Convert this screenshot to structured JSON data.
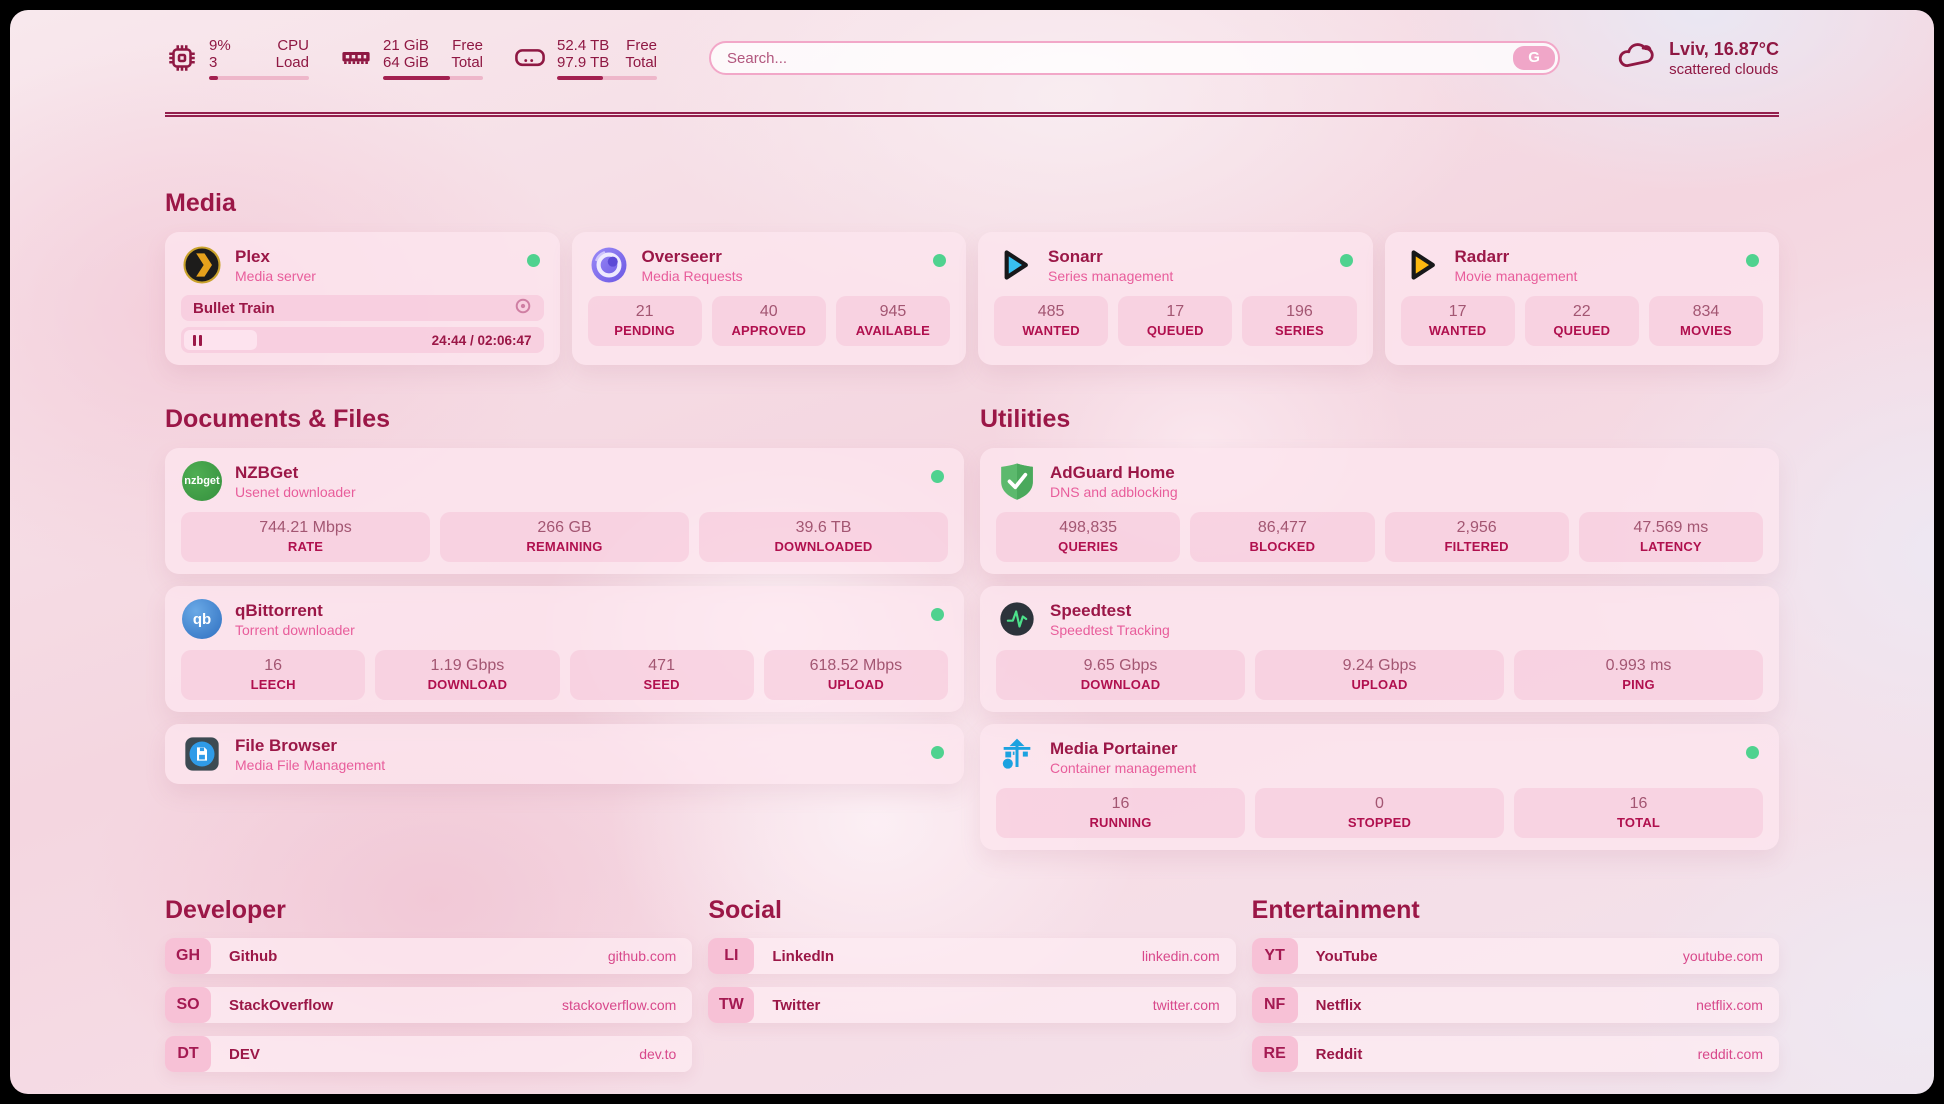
{
  "header": {
    "cpu": {
      "percent": "9%",
      "cores": "3",
      "label_top": "CPU",
      "label_bottom": "Load",
      "progress": 9
    },
    "ram": {
      "free": "21 GiB",
      "total": "64 GiB",
      "label_top": "Free",
      "label_bottom": "Total",
      "progress": 67
    },
    "disk": {
      "free": "52.4 TB",
      "total": "97.9 TB",
      "label_top": "Free",
      "label_bottom": "Total",
      "progress": 46
    },
    "search": {
      "placeholder": "Search...",
      "button_label": "G"
    },
    "weather": {
      "location": "Lviv, 16.87°C",
      "condition": "scattered clouds"
    }
  },
  "media": {
    "title": "Media",
    "plex": {
      "name": "Plex",
      "subtitle": "Media server",
      "now_playing": "Bullet Train",
      "time_display": "24:44 / 02:06:47",
      "progress": 20
    },
    "overseerr": {
      "name": "Overseerr",
      "subtitle": "Media Requests",
      "stats": [
        {
          "value": "21",
          "label": "PENDING"
        },
        {
          "value": "40",
          "label": "APPROVED"
        },
        {
          "value": "945",
          "label": "AVAILABLE"
        }
      ]
    },
    "sonarr": {
      "name": "Sonarr",
      "subtitle": "Series management",
      "stats": [
        {
          "value": "485",
          "label": "WANTED"
        },
        {
          "value": "17",
          "label": "QUEUED"
        },
        {
          "value": "196",
          "label": "SERIES"
        }
      ]
    },
    "radarr": {
      "name": "Radarr",
      "subtitle": "Movie management",
      "stats": [
        {
          "value": "17",
          "label": "WANTED"
        },
        {
          "value": "22",
          "label": "QUEUED"
        },
        {
          "value": "834",
          "label": "MOVIES"
        }
      ]
    }
  },
  "documents": {
    "title": "Documents & Files",
    "nzbget": {
      "name": "NZBGet",
      "subtitle": "Usenet downloader",
      "icon_label": "nzbget",
      "stats": [
        {
          "value": "744.21 Mbps",
          "label": "RATE"
        },
        {
          "value": "266 GB",
          "label": "REMAINING"
        },
        {
          "value": "39.6 TB",
          "label": "DOWNLOADED"
        }
      ]
    },
    "qbittorrent": {
      "name": "qBittorrent",
      "subtitle": "Torrent downloader",
      "icon_label": "qb",
      "stats": [
        {
          "value": "16",
          "label": "LEECH"
        },
        {
          "value": "1.19 Gbps",
          "label": "DOWNLOAD"
        },
        {
          "value": "471",
          "label": "SEED"
        },
        {
          "value": "618.52 Mbps",
          "label": "UPLOAD"
        }
      ]
    },
    "filebrowser": {
      "name": "File Browser",
      "subtitle": "Media File Management"
    }
  },
  "utilities": {
    "title": "Utilities",
    "adguard": {
      "name": "AdGuard Home",
      "subtitle": "DNS and adblocking",
      "stats": [
        {
          "value": "498,835",
          "label": "QUERIES"
        },
        {
          "value": "86,477",
          "label": "BLOCKED"
        },
        {
          "value": "2,956",
          "label": "FILTERED"
        },
        {
          "value": "47.569 ms",
          "label": "LATENCY"
        }
      ]
    },
    "speedtest": {
      "name": "Speedtest",
      "subtitle": "Speedtest Tracking",
      "stats": [
        {
          "value": "9.65 Gbps",
          "label": "DOWNLOAD"
        },
        {
          "value": "9.24 Gbps",
          "label": "UPLOAD"
        },
        {
          "value": "0.993 ms",
          "label": "PING"
        }
      ]
    },
    "portainer": {
      "name": "Media Portainer",
      "subtitle": "Container management",
      "stats": [
        {
          "value": "16",
          "label": "RUNNING"
        },
        {
          "value": "0",
          "label": "STOPPED"
        },
        {
          "value": "16",
          "label": "TOTAL"
        }
      ]
    }
  },
  "developer": {
    "title": "Developer",
    "links": [
      {
        "abbr": "GH",
        "name": "Github",
        "url": "github.com"
      },
      {
        "abbr": "SO",
        "name": "StackOverflow",
        "url": "stackoverflow.com"
      },
      {
        "abbr": "DT",
        "name": "DEV",
        "url": "dev.to"
      }
    ]
  },
  "social": {
    "title": "Social",
    "links": [
      {
        "abbr": "LI",
        "name": "LinkedIn",
        "url": "linkedin.com"
      },
      {
        "abbr": "TW",
        "name": "Twitter",
        "url": "twitter.com"
      }
    ]
  },
  "entertainment": {
    "title": "Entertainment",
    "links": [
      {
        "abbr": "YT",
        "name": "YouTube",
        "url": "youtube.com"
      },
      {
        "abbr": "NF",
        "name": "Netflix",
        "url": "netflix.com"
      },
      {
        "abbr": "RE",
        "name": "Reddit",
        "url": "reddit.com"
      }
    ]
  },
  "colors": {
    "accent": "#9b1747",
    "subtitle_pink": "#e85d9b",
    "link_pink": "#d8488b",
    "status_green": "#4fd28f",
    "bar_fill": "#a32050"
  }
}
